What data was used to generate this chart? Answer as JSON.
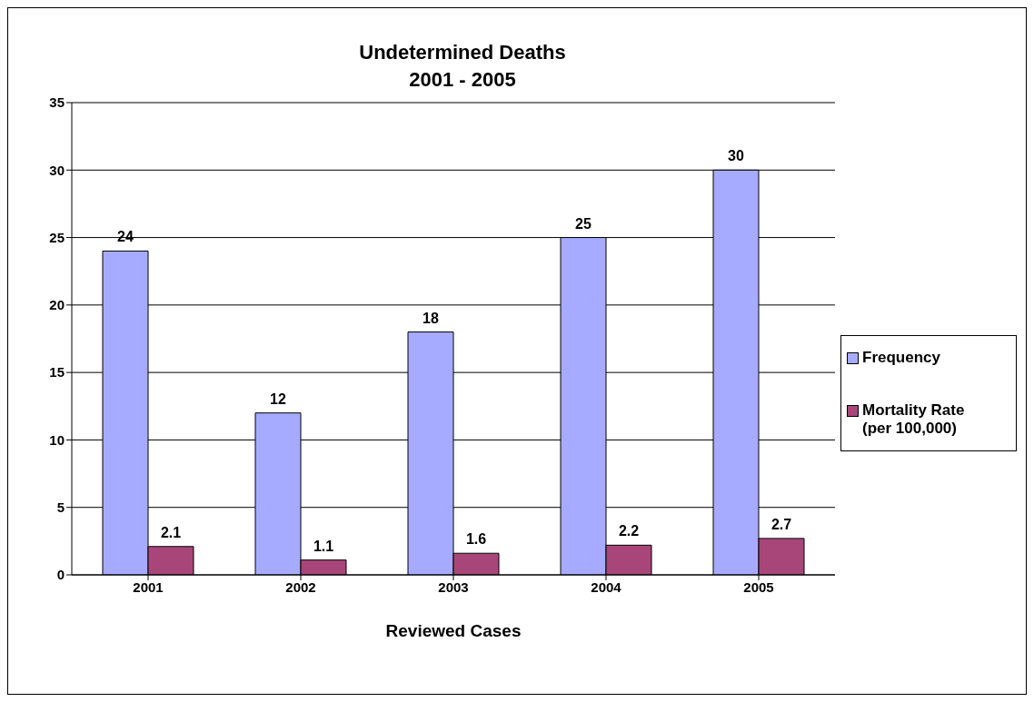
{
  "chart_data": {
    "type": "bar",
    "title": "Undetermined Deaths\n2001 - 2005",
    "xlabel": "Reviewed Cases",
    "categories": [
      "2001",
      "2002",
      "2003",
      "2004",
      "2005"
    ],
    "series": [
      {
        "name": "Frequency",
        "color": "#a6abff",
        "values": [
          24,
          12,
          18,
          25,
          30
        ]
      },
      {
        "name": "Mortality Rate (per 100,000)",
        "color": "#a8467a",
        "values": [
          2.1,
          1.1,
          1.6,
          2.2,
          2.7
        ]
      }
    ],
    "ylim": [
      0,
      35
    ],
    "yticks": [
      0,
      5,
      10,
      15,
      20,
      25,
      30,
      35
    ],
    "grid": "y",
    "legend": "right",
    "data_labels": true
  }
}
